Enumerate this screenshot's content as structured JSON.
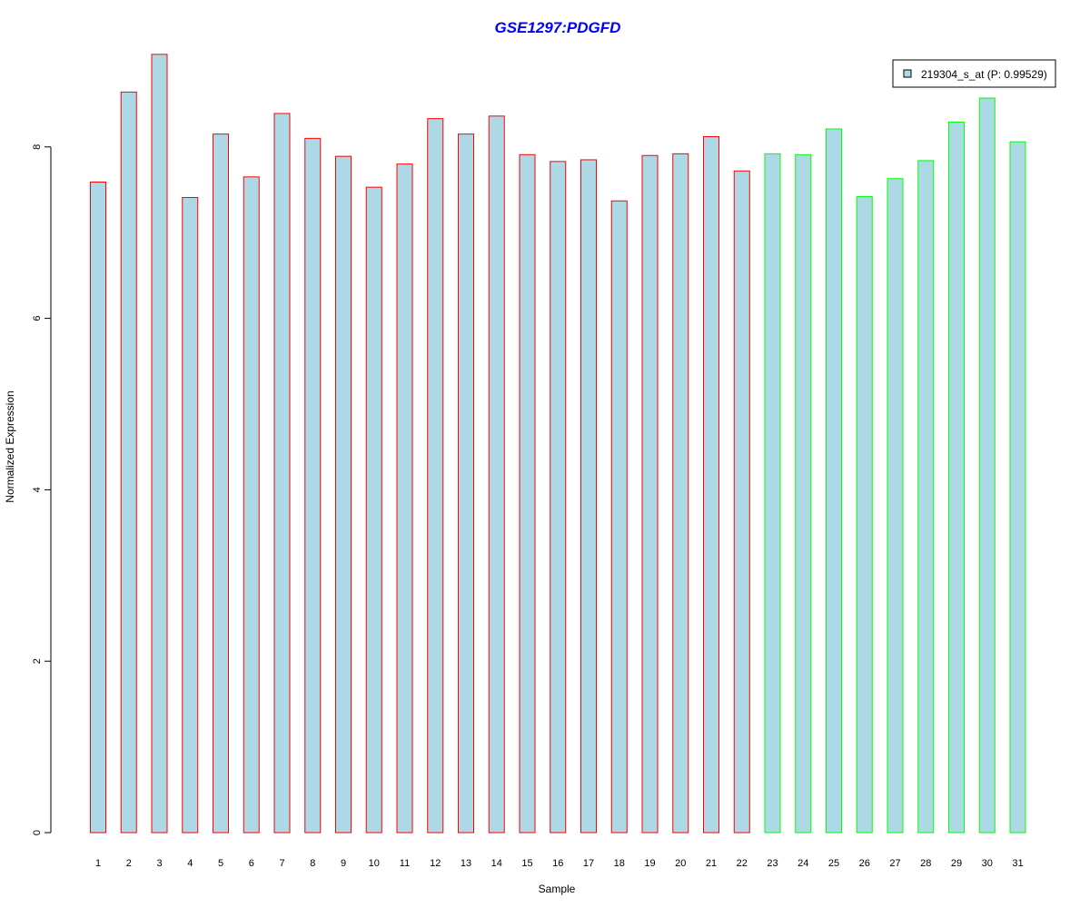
{
  "chart_data": {
    "type": "bar",
    "title": "GSE1297:PDGFD",
    "xlabel": "Sample",
    "ylabel": "Normalized Expression",
    "ylim": [
      0,
      9.1
    ],
    "yticks": [
      0,
      2,
      4,
      6,
      8
    ],
    "grid": false,
    "legend_position": "top-right",
    "categories": [
      "1",
      "2",
      "3",
      "4",
      "5",
      "6",
      "7",
      "8",
      "9",
      "10",
      "11",
      "12",
      "13",
      "14",
      "15",
      "16",
      "17",
      "18",
      "19",
      "20",
      "21",
      "22",
      "23",
      "24",
      "25",
      "26",
      "27",
      "28",
      "29",
      "30",
      "31"
    ],
    "series": [
      {
        "name": "219304_s_at (P: 0.99529)",
        "values": [
          7.59,
          8.64,
          9.08,
          7.41,
          8.15,
          7.65,
          8.39,
          8.1,
          7.89,
          7.53,
          7.8,
          8.33,
          8.15,
          8.36,
          7.91,
          7.83,
          7.85,
          7.37,
          7.9,
          7.92,
          8.12,
          7.72,
          7.92,
          7.91,
          8.21,
          7.42,
          7.63,
          7.84,
          8.29,
          8.57,
          8.06
        ],
        "groups": [
          "1",
          "1",
          "1",
          "1",
          "1",
          "1",
          "1",
          "1",
          "1",
          "1",
          "1",
          "1",
          "1",
          "1",
          "1",
          "1",
          "1",
          "1",
          "1",
          "1",
          "1",
          "1",
          "2",
          "2",
          "2",
          "2",
          "2",
          "2",
          "2",
          "2",
          "2"
        ]
      }
    ],
    "colors": {
      "bar_fill": "#add8e6",
      "group_1_border": "#ff0000",
      "group_2_border": "#00ff00",
      "title": "#0000ff",
      "axis": "#000000"
    }
  }
}
